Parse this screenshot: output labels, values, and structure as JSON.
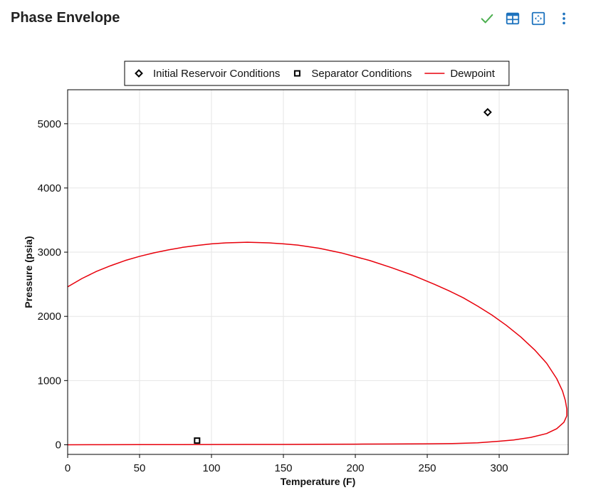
{
  "header": {
    "title": "Phase Envelope",
    "icons": [
      "check-icon",
      "table-icon",
      "expand-icon",
      "more-vert-icon"
    ],
    "icon_colors": {
      "check": "#4caf50",
      "table": "#1e73be",
      "expand": "#1e73be",
      "more": "#1e73be"
    }
  },
  "chart_data": {
    "type": "line",
    "xlabel": "Temperature (F)",
    "ylabel": "Pressure (psia)",
    "xlim": [
      0,
      348
    ],
    "ylim": [
      -150,
      5530
    ],
    "xticks": [
      0,
      50,
      100,
      150,
      200,
      250,
      300
    ],
    "yticks": [
      0,
      1000,
      2000,
      3000,
      4000,
      5000
    ],
    "grid": true,
    "legend_position": "top-center",
    "legend": [
      {
        "label": "Initial Reservoir Conditions",
        "marker": "diamond",
        "color": "#000000"
      },
      {
        "label": "Separator Conditions",
        "marker": "square",
        "color": "#000000"
      },
      {
        "label": "Dewpoint",
        "marker": "line",
        "color": "#e8000b"
      }
    ],
    "series": [
      {
        "name": "Initial Reservoir Conditions",
        "type": "scatter",
        "marker": "diamond",
        "color": "#000000",
        "points": [
          [
            292,
            5180
          ]
        ]
      },
      {
        "name": "Separator Conditions",
        "type": "scatter",
        "marker": "square",
        "color": "#000000",
        "points": [
          [
            90,
            65
          ]
        ]
      },
      {
        "name": "Dewpoint",
        "type": "line",
        "color": "#e8000b",
        "points": [
          [
            0,
            2460
          ],
          [
            10,
            2590
          ],
          [
            20,
            2700
          ],
          [
            30,
            2790
          ],
          [
            40,
            2870
          ],
          [
            50,
            2935
          ],
          [
            60,
            2990
          ],
          [
            70,
            3035
          ],
          [
            80,
            3075
          ],
          [
            90,
            3105
          ],
          [
            100,
            3130
          ],
          [
            110,
            3145
          ],
          [
            125,
            3155
          ],
          [
            140,
            3145
          ],
          [
            150,
            3130
          ],
          [
            160,
            3110
          ],
          [
            175,
            3060
          ],
          [
            190,
            2990
          ],
          [
            200,
            2930
          ],
          [
            210,
            2870
          ],
          [
            225,
            2760
          ],
          [
            240,
            2640
          ],
          [
            255,
            2500
          ],
          [
            265,
            2400
          ],
          [
            275,
            2290
          ],
          [
            285,
            2160
          ],
          [
            295,
            2020
          ],
          [
            305,
            1860
          ],
          [
            315,
            1680
          ],
          [
            325,
            1470
          ],
          [
            333,
            1270
          ],
          [
            340,
            1030
          ],
          [
            344,
            840
          ],
          [
            346,
            690
          ],
          [
            347,
            560
          ],
          [
            347,
            450
          ],
          [
            345,
            350
          ],
          [
            340,
            250
          ],
          [
            333,
            175
          ],
          [
            322,
            115
          ],
          [
            310,
            75
          ],
          [
            300,
            55
          ],
          [
            285,
            30
          ],
          [
            270,
            20
          ],
          [
            250,
            15
          ],
          [
            225,
            12
          ],
          [
            200,
            10
          ],
          [
            175,
            8
          ],
          [
            150,
            6
          ],
          [
            125,
            5
          ],
          [
            100,
            4
          ],
          [
            75,
            3
          ],
          [
            50,
            2
          ],
          [
            25,
            1
          ],
          [
            0,
            0
          ]
        ]
      }
    ]
  }
}
